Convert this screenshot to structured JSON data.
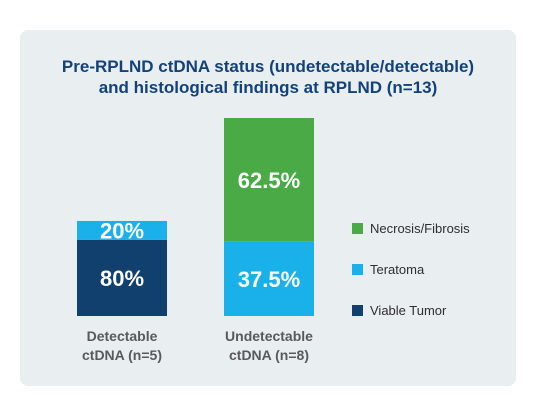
{
  "chart_data": {
    "type": "bar",
    "stacked": true,
    "title_lines": [
      "Pre-RPLND ctDNA status (undetectable/detectable)",
      "and histological findings at RPLND (n=13)"
    ],
    "categories": [
      [
        "Detectable",
        "ctDNA (n=5)"
      ],
      [
        "Undetectable",
        "ctDNA (n=8)"
      ]
    ],
    "series": [
      {
        "name": "Viable Tumor",
        "color": "#11406f",
        "values": [
          80,
          0
        ],
        "labels": [
          "80%",
          ""
        ]
      },
      {
        "name": "Teratoma",
        "color": "#1ab1ea",
        "values": [
          20,
          37.5
        ],
        "labels": [
          "20%",
          "37.5%"
        ]
      },
      {
        "name": "Necrosis/Fibrosis",
        "color": "#4aaa45",
        "values": [
          0,
          62.5
        ],
        "labels": [
          "",
          "62.5%"
        ]
      }
    ],
    "legend_order": [
      "Necrosis/Fibrosis",
      "Teratoma",
      "Viable Tumor"
    ],
    "legend_position": "right",
    "ylim": [
      0,
      100
    ],
    "grid": false
  }
}
